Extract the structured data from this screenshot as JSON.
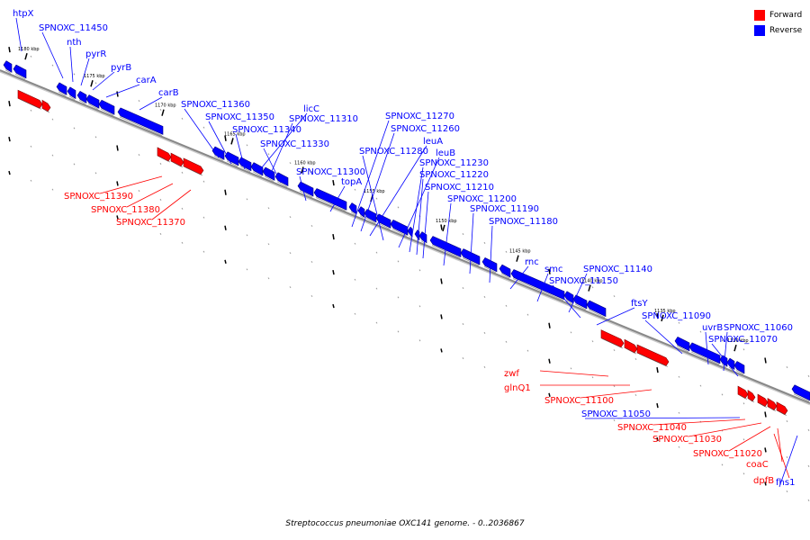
{
  "caption": "Streptococcus pneumoniae OXC141 genome. - 0..2036867",
  "legend": [
    {
      "label": "Forward",
      "color": "#ff0000"
    },
    {
      "label": "Reverse",
      "color": "#0000ff"
    }
  ],
  "colors": {
    "forward": "#ff0000",
    "reverse": "#0000ff",
    "axis": "#888888"
  },
  "ticks": [
    "1180 kbp",
    "1175 kbp",
    "1170 kbp",
    "1165 kbp",
    "1160 kbp",
    "1155 kbp",
    "1150 kbp",
    "1145 kbp",
    "1140 kbp",
    "1135 kbp",
    "1130 kbp"
  ],
  "genes": [
    {
      "name": "htpX",
      "strand": "reverse"
    },
    {
      "name": "SPNOXC_11450",
      "strand": "reverse"
    },
    {
      "name": "nth",
      "strand": "reverse"
    },
    {
      "name": "pyrR",
      "strand": "reverse"
    },
    {
      "name": "pyrB",
      "strand": "reverse"
    },
    {
      "name": "carA",
      "strand": "reverse"
    },
    {
      "name": "carB",
      "strand": "reverse"
    },
    {
      "name": "SPNOXC_11360",
      "strand": "reverse"
    },
    {
      "name": "SPNOXC_11350",
      "strand": "reverse"
    },
    {
      "name": "SPNOXC_11340",
      "strand": "reverse"
    },
    {
      "name": "licC",
      "strand": "reverse"
    },
    {
      "name": "SPNOXC_11310",
      "strand": "reverse"
    },
    {
      "name": "SPNOXC_11330",
      "strand": "reverse"
    },
    {
      "name": "SPNOXC_11300",
      "strand": "reverse"
    },
    {
      "name": "topA",
      "strand": "reverse"
    },
    {
      "name": "SPNOXC_11270",
      "strand": "reverse"
    },
    {
      "name": "SPNOXC_11260",
      "strand": "reverse"
    },
    {
      "name": "leuA",
      "strand": "reverse"
    },
    {
      "name": "SPNOXC_11280",
      "strand": "reverse"
    },
    {
      "name": "leuB",
      "strand": "reverse"
    },
    {
      "name": "SPNOXC_11230",
      "strand": "reverse"
    },
    {
      "name": "SPNOXC_11220",
      "strand": "reverse"
    },
    {
      "name": "SPNOXC_11210",
      "strand": "reverse"
    },
    {
      "name": "SPNOXC_11200",
      "strand": "reverse"
    },
    {
      "name": "SPNOXC_11190",
      "strand": "reverse"
    },
    {
      "name": "SPNOXC_11180",
      "strand": "reverse"
    },
    {
      "name": "rnc",
      "strand": "reverse"
    },
    {
      "name": "smc",
      "strand": "reverse"
    },
    {
      "name": "SPNOXC_11140",
      "strand": "reverse"
    },
    {
      "name": "SPNOXC_11150",
      "strand": "reverse"
    },
    {
      "name": "ftsY",
      "strand": "reverse"
    },
    {
      "name": "SPNOXC_11090",
      "strand": "reverse"
    },
    {
      "name": "uvrB",
      "strand": "reverse"
    },
    {
      "name": "SPNOXC_11060",
      "strand": "reverse"
    },
    {
      "name": "SPNOXC_11070",
      "strand": "reverse"
    },
    {
      "name": "SPNOXC_11390",
      "strand": "forward"
    },
    {
      "name": "SPNOXC_11380",
      "strand": "forward"
    },
    {
      "name": "SPNOXC_11370",
      "strand": "forward"
    },
    {
      "name": "zwf",
      "strand": "forward"
    },
    {
      "name": "glnQ1",
      "strand": "forward"
    },
    {
      "name": "SPNOXC_11100",
      "strand": "forward"
    },
    {
      "name": "SPNOXC_11050",
      "strand": "reverse"
    },
    {
      "name": "SPNOXC_11040",
      "strand": "forward"
    },
    {
      "name": "SPNOXC_11030",
      "strand": "forward"
    },
    {
      "name": "SPNOXC_11020",
      "strand": "forward"
    },
    {
      "name": "coaC",
      "strand": "forward"
    },
    {
      "name": "dpfB",
      "strand": "forward"
    },
    {
      "name": "fhs1",
      "strand": "reverse"
    }
  ]
}
